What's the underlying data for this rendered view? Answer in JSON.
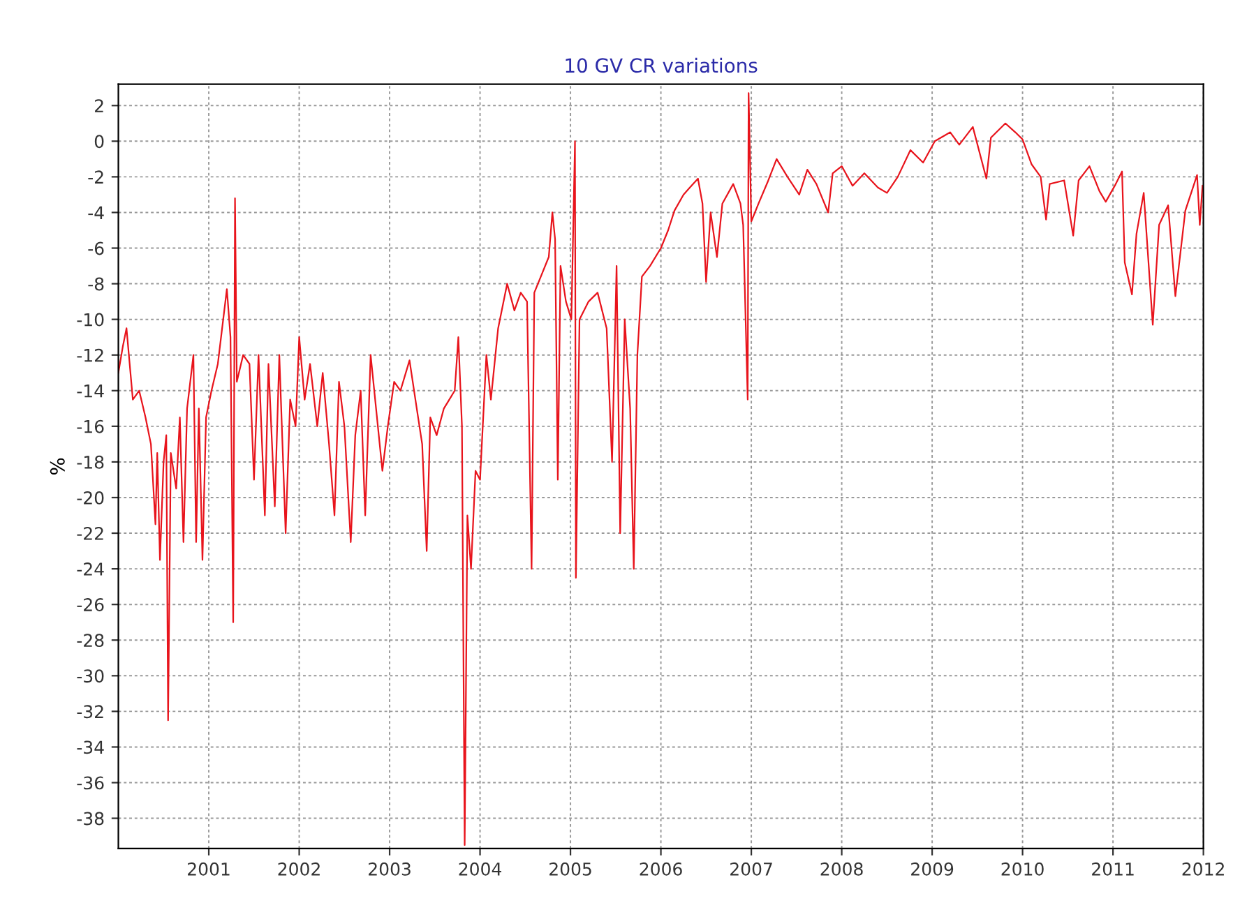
{
  "chart_data": {
    "type": "line",
    "title": "10 GV CR variations",
    "ylabel": "%",
    "xlim": [
      2000,
      2012
    ],
    "ylim": [
      -39.7,
      3.2
    ],
    "xticks": [
      2001,
      2002,
      2003,
      2004,
      2005,
      2006,
      2007,
      2008,
      2009,
      2010,
      2011,
      2012
    ],
    "yticks": [
      -38,
      -36,
      -34,
      -32,
      -30,
      -28,
      -26,
      -24,
      -22,
      -20,
      -18,
      -16,
      -14,
      -12,
      -10,
      -8,
      -6,
      -4,
      -2,
      0,
      2
    ],
    "grid": true,
    "line_style": "solid",
    "marker": "none",
    "series": [
      {
        "color": "#e8141c",
        "x": [
          2000.0,
          2000.05,
          2000.09,
          2000.16,
          2000.23,
          2000.3,
          2000.36,
          2000.41,
          2000.43,
          2000.46,
          2000.5,
          2000.53,
          2000.55,
          2000.58,
          2000.64,
          2000.68,
          2000.72,
          2000.76,
          2000.83,
          2000.86,
          2000.89,
          2000.93,
          2000.97,
          2001.03,
          2001.1,
          2001.2,
          2001.24,
          2001.27,
          2001.29,
          2001.31,
          2001.38,
          2001.45,
          2001.5,
          2001.55,
          2001.62,
          2001.66,
          2001.73,
          2001.78,
          2001.85,
          2001.9,
          2001.96,
          2002.0,
          2002.06,
          2002.12,
          2002.2,
          2002.26,
          2002.33,
          2002.39,
          2002.44,
          2002.5,
          2002.57,
          2002.62,
          2002.68,
          2002.73,
          2002.79,
          2002.86,
          2002.92,
          2002.98,
          2003.05,
          2003.12,
          2003.22,
          2003.3,
          2003.36,
          2003.41,
          2003.45,
          2003.52,
          2003.6,
          2003.66,
          2003.72,
          2003.76,
          2003.8,
          2003.83,
          2003.86,
          2003.9,
          2003.95,
          2004.0,
          2004.07,
          2004.12,
          2004.2,
          2004.3,
          2004.38,
          2004.45,
          2004.52,
          2004.57,
          2004.6,
          2004.68,
          2004.76,
          2004.8,
          2004.83,
          2004.86,
          2004.89,
          2004.95,
          2005.01,
          2005.05,
          2005.06,
          2005.1,
          2005.2,
          2005.3,
          2005.4,
          2005.46,
          2005.51,
          2005.55,
          2005.6,
          2005.66,
          2005.7,
          2005.74,
          2005.79,
          2005.88,
          2006.0,
          2006.08,
          2006.15,
          2006.25,
          2006.32,
          2006.41,
          2006.46,
          2006.5,
          2006.55,
          2006.62,
          2006.68,
          2006.8,
          2006.88,
          2006.91,
          2006.96,
          2006.97,
          2007.0,
          2007.08,
          2007.18,
          2007.28,
          2007.4,
          2007.53,
          2007.62,
          2007.72,
          2007.85,
          2007.9,
          2008.0,
          2008.12,
          2008.25,
          2008.4,
          2008.5,
          2008.62,
          2008.76,
          2008.9,
          2009.03,
          2009.2,
          2009.3,
          2009.45,
          2009.6,
          2009.65,
          2009.81,
          2009.92,
          2010.0,
          2010.1,
          2010.2,
          2010.26,
          2010.3,
          2010.46,
          2010.56,
          2010.62,
          2010.74,
          2010.85,
          2010.92,
          2011.02,
          2011.1,
          2011.13,
          2011.21,
          2011.26,
          2011.34,
          2011.44,
          2011.51,
          2011.61,
          2011.69,
          2011.8,
          2011.93,
          2011.96,
          2011.99
        ],
        "values": [
          -13.0,
          -11.5,
          -10.5,
          -14.5,
          -14.0,
          -15.5,
          -17.0,
          -21.5,
          -17.5,
          -23.5,
          -18.0,
          -16.5,
          -32.5,
          -17.5,
          -19.5,
          -15.5,
          -22.5,
          -15.0,
          -12.0,
          -22.5,
          -15.0,
          -23.5,
          -15.5,
          -14.0,
          -12.5,
          -8.3,
          -11.0,
          -27.0,
          -3.2,
          -13.5,
          -12.0,
          -12.5,
          -19.0,
          -12.0,
          -21.0,
          -12.5,
          -20.5,
          -12.0,
          -22.0,
          -14.5,
          -16.0,
          -11.0,
          -14.5,
          -12.5,
          -16.0,
          -13.0,
          -17.0,
          -21.0,
          -13.5,
          -16.0,
          -22.5,
          -16.5,
          -14.0,
          -21.0,
          -12.0,
          -15.5,
          -18.5,
          -16.0,
          -13.5,
          -14.0,
          -12.3,
          -15.0,
          -17.0,
          -23.0,
          -15.5,
          -16.5,
          -15.0,
          -14.5,
          -14.0,
          -11.0,
          -16.0,
          -39.5,
          -21.0,
          -24.0,
          -18.5,
          -19.0,
          -12.0,
          -14.5,
          -10.5,
          -8.0,
          -9.5,
          -8.5,
          -9.0,
          -24.0,
          -8.5,
          -7.5,
          -6.5,
          -4.0,
          -5.5,
          -19.0,
          -7.0,
          -9.0,
          -10.0,
          0.0,
          -24.5,
          -10.0,
          -9.0,
          -8.5,
          -10.5,
          -18.0,
          -7.0,
          -22.0,
          -10.0,
          -15.0,
          -24.0,
          -12.0,
          -7.6,
          -7.0,
          -6.0,
          -5.0,
          -3.9,
          -3.0,
          -2.6,
          -2.1,
          -3.5,
          -7.9,
          -4.0,
          -6.5,
          -3.5,
          -2.4,
          -3.5,
          -4.7,
          -14.5,
          2.7,
          -4.5,
          -3.5,
          -2.3,
          -1.0,
          -2.0,
          -3.0,
          -1.6,
          -2.4,
          -4.0,
          -1.8,
          -1.4,
          -2.5,
          -1.8,
          -2.6,
          -2.9,
          -2.0,
          -0.5,
          -1.2,
          0.0,
          0.5,
          -0.2,
          0.8,
          -2.1,
          0.2,
          1.0,
          0.5,
          0.1,
          -1.3,
          -2.0,
          -4.4,
          -2.4,
          -2.2,
          -5.3,
          -2.2,
          -1.4,
          -2.8,
          -3.4,
          -2.5,
          -1.7,
          -6.8,
          -8.6,
          -5.2,
          -2.9,
          -10.3,
          -4.7,
          -3.6,
          -8.7,
          -3.9,
          -1.9,
          -4.7,
          -2.5
        ]
      }
    ]
  }
}
